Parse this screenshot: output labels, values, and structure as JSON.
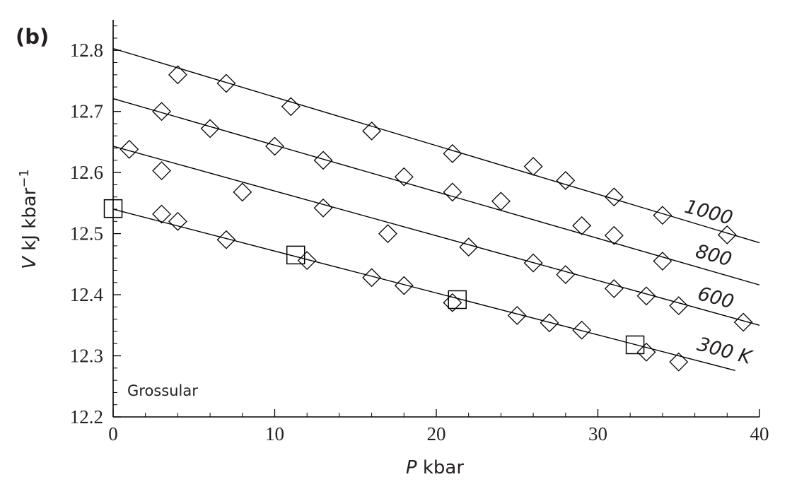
{
  "chart_data": {
    "type": "scatter",
    "panel_label": "(b)",
    "annotation": "Grossular",
    "xlabel": {
      "var": "P",
      "unit": " kbar"
    },
    "ylabel": {
      "var": "V",
      "unit": " kJ kbar",
      "sup": "−1"
    },
    "xlim": [
      0,
      40
    ],
    "ylim": [
      12.2,
      12.85
    ],
    "x_ticks": [
      "0",
      "10",
      "20",
      "30",
      "40"
    ],
    "y_ticks": [
      "12.2",
      "12.3",
      "12.4",
      "12.5",
      "12.6",
      "12.7",
      "12.8"
    ],
    "series": [
      {
        "label": "1000",
        "fit": {
          "x": [
            0,
            40
          ],
          "y": [
            12.803,
            12.485
          ]
        },
        "diamonds": [
          [
            4,
            12.76
          ],
          [
            7,
            12.746
          ],
          [
            11,
            12.708
          ],
          [
            16,
            12.668
          ],
          [
            21,
            12.631
          ],
          [
            26,
            12.61
          ],
          [
            28,
            12.587
          ],
          [
            31,
            12.56
          ],
          [
            34,
            12.53
          ],
          [
            38,
            12.498
          ]
        ]
      },
      {
        "label": "800",
        "fit": {
          "x": [
            0,
            40
          ],
          "y": [
            12.721,
            12.416
          ]
        },
        "diamonds": [
          [
            3,
            12.7
          ],
          [
            6,
            12.672
          ],
          [
            10,
            12.643
          ],
          [
            13,
            12.62
          ],
          [
            18,
            12.593
          ],
          [
            21,
            12.568
          ],
          [
            24,
            12.553
          ],
          [
            29,
            12.513
          ],
          [
            31,
            12.497
          ],
          [
            34,
            12.455
          ]
        ]
      },
      {
        "label": "600",
        "fit": {
          "x": [
            0,
            40
          ],
          "y": [
            12.643,
            12.35
          ]
        },
        "diamonds": [
          [
            1,
            12.638
          ],
          [
            3,
            12.603
          ],
          [
            8,
            12.568
          ],
          [
            13,
            12.542
          ],
          [
            17,
            12.5
          ],
          [
            22,
            12.478
          ],
          [
            26,
            12.452
          ],
          [
            28,
            12.433
          ],
          [
            31,
            12.41
          ],
          [
            33,
            12.398
          ],
          [
            35,
            12.382
          ],
          [
            39,
            12.355
          ]
        ]
      },
      {
        "label": "300 K",
        "fit": {
          "x": [
            0,
            38.5
          ],
          "y": [
            12.54,
            12.276
          ]
        },
        "diamonds": [
          [
            3,
            12.532
          ],
          [
            4,
            12.52
          ],
          [
            7,
            12.49
          ],
          [
            12,
            12.456
          ],
          [
            16,
            12.428
          ],
          [
            18,
            12.415
          ],
          [
            21,
            12.387
          ],
          [
            25,
            12.366
          ],
          [
            27,
            12.354
          ],
          [
            29,
            12.342
          ],
          [
            33,
            12.306
          ],
          [
            35,
            12.29
          ]
        ],
        "squares": [
          [
            0,
            12.541
          ],
          [
            11.3,
            12.465
          ],
          [
            21.3,
            12.392
          ],
          [
            32.3,
            12.318
          ]
        ]
      }
    ]
  }
}
